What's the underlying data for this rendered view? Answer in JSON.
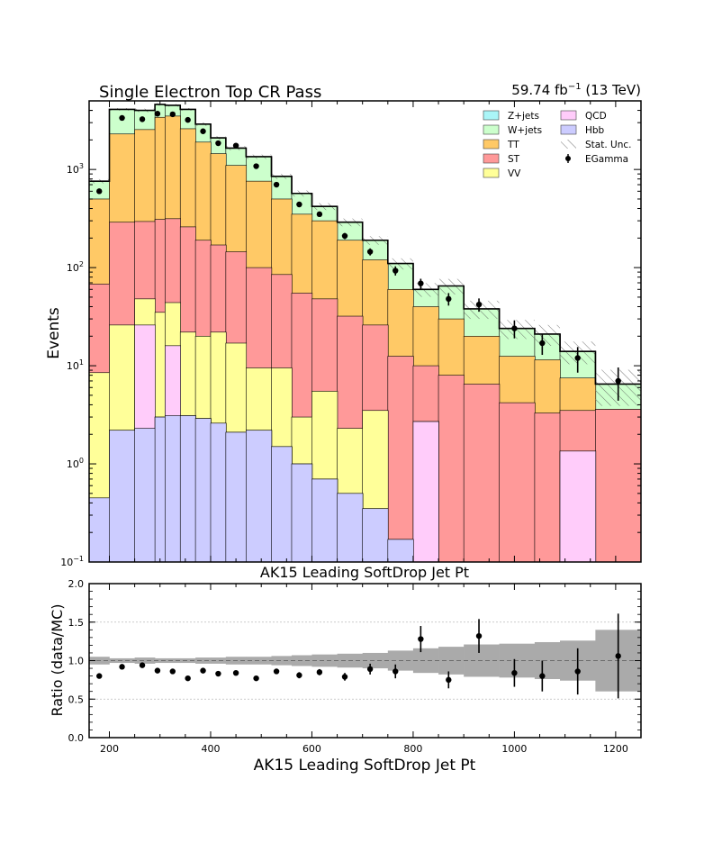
{
  "chart_data": {
    "type": "bar",
    "title": "Single Electron Top CR Pass",
    "lumi_label": "59.74 fb",
    "lumi_sup": "−1",
    "energy_label": " (13 TeV)",
    "main_xlabel": "AK15 Leading SoftDrop Jet Pt",
    "main_ylabel": "Events",
    "ratio_xlabel": "AK15 Leading SoftDrop Jet Pt",
    "ratio_ylabel": "Ratio (data/MC)",
    "x_range": [
      160,
      1250
    ],
    "main_y_scale": "log",
    "main_ylim": [
      0.1,
      5000
    ],
    "ratio_ylim": [
      0,
      2
    ],
    "x_ticks": [
      "200",
      "400",
      "600",
      "800",
      "1000",
      "1200"
    ],
    "ratio_ticks": [
      "0.0",
      "0.5",
      "1.0",
      "1.5",
      "2.0"
    ],
    "legend_placement": "top-right",
    "legend": [
      {
        "label": "Z+jets",
        "color": "#aaf5f7"
      },
      {
        "label": "QCD",
        "color": "#ffccfa"
      },
      {
        "label": "W+jets",
        "color": "#ccffcc"
      },
      {
        "label": "Hbb",
        "color": "#ccccff"
      },
      {
        "label": "TT",
        "color": "#ffc966"
      },
      {
        "label": "Stat. Unc.",
        "color": "#555555"
      },
      {
        "label": "ST",
        "color": "#ff9999"
      },
      {
        "label": "EGamma",
        "color": "#000000"
      },
      {
        "label": "VV",
        "color": "#ffff99"
      }
    ],
    "bin_edges": [
      160,
      200,
      250,
      290,
      310,
      340,
      370,
      400,
      430,
      470,
      520,
      560,
      600,
      650,
      700,
      750,
      800,
      850,
      900,
      970,
      1040,
      1090,
      1160,
      1250
    ],
    "stack_order": [
      "Hbb",
      "QCD",
      "VV",
      "ST",
      "TT",
      "W+jets",
      "Z+jets"
    ],
    "stack_colors": {
      "Hbb": "#ccccff",
      "QCD": "#ffccfa",
      "VV": "#ffff99",
      "ST": "#ff9999",
      "TT": "#ffc966",
      "W+jets": "#ccffcc",
      "Z+jets": "#aaf5f7"
    },
    "stack_cumulative": {
      "Hbb": [
        0.45,
        2.2,
        2.3,
        3.0,
        3.1,
        3.1,
        2.9,
        2.6,
        2.1,
        2.2,
        1.5,
        1.0,
        0.7,
        0.5,
        0.35,
        0.17,
        0.1,
        0.1,
        0.1,
        0.1,
        0.1,
        0.1,
        0.1
      ],
      "QCD": [
        0.45,
        2.2,
        26,
        3.0,
        16,
        3.1,
        2.9,
        2.6,
        2.1,
        2.2,
        1.5,
        1.0,
        0.7,
        0.5,
        0.35,
        0.17,
        2.7,
        0.1,
        0.1,
        0.1,
        0.1,
        1.35,
        0.1
      ],
      "VV": [
        8.5,
        26,
        48,
        35,
        44,
        22,
        20,
        22,
        17,
        9.5,
        9.5,
        3.0,
        5.5,
        2.3,
        3.5,
        0.17,
        2.7,
        0.1,
        0.1,
        0.1,
        0.1,
        1.35,
        0.1
      ],
      "ST": [
        68,
        290,
        295,
        310,
        315,
        260,
        190,
        170,
        145,
        100,
        85,
        55,
        48,
        32,
        26,
        12.5,
        10,
        8,
        6.5,
        4.2,
        3.3,
        3.5,
        3.6
      ],
      "TT": [
        500,
        2300,
        2550,
        3400,
        3500,
        2600,
        1900,
        1450,
        1100,
        760,
        500,
        350,
        300,
        190,
        120,
        60,
        40,
        30,
        20,
        12.5,
        11.5,
        7.5,
        3.6
      ],
      "W+jets": [
        760,
        4100,
        4000,
        4600,
        4500,
        4100,
        2900,
        2100,
        1650,
        1350,
        850,
        570,
        420,
        290,
        190,
        110,
        60,
        65,
        38,
        24,
        21,
        14,
        6.5
      ],
      "Z+jets": [
        760,
        4100,
        4000,
        4600,
        4500,
        4100,
        2900,
        2100,
        1650,
        1350,
        850,
        570,
        420,
        290,
        190,
        110,
        60,
        65,
        38,
        24,
        21,
        14,
        6.5
      ]
    },
    "stat_unc_rel": [
      0.05,
      0.03,
      0.04,
      0.03,
      0.03,
      0.03,
      0.04,
      0.04,
      0.05,
      0.05,
      0.06,
      0.07,
      0.08,
      0.09,
      0.1,
      0.13,
      0.16,
      0.18,
      0.21,
      0.22,
      0.24,
      0.26,
      0.4
    ],
    "data_points": [
      {
        "x": 180,
        "y": 600,
        "yerr": 25,
        "ratio": 0.8,
        "ratio_err": 0.03
      },
      {
        "x": 225,
        "y": 3350,
        "yerr": 58,
        "ratio": 0.92,
        "ratio_err": 0.02
      },
      {
        "x": 265,
        "y": 3250,
        "yerr": 57,
        "ratio": 0.94,
        "ratio_err": 0.02
      },
      {
        "x": 295,
        "y": 3700,
        "yerr": 61,
        "ratio": 0.87,
        "ratio_err": 0.02
      },
      {
        "x": 325,
        "y": 3650,
        "yerr": 60,
        "ratio": 0.86,
        "ratio_err": 0.02
      },
      {
        "x": 355,
        "y": 3200,
        "yerr": 57,
        "ratio": 0.77,
        "ratio_err": 0.02
      },
      {
        "x": 385,
        "y": 2450,
        "yerr": 50,
        "ratio": 0.87,
        "ratio_err": 0.02
      },
      {
        "x": 415,
        "y": 1850,
        "yerr": 43,
        "ratio": 0.83,
        "ratio_err": 0.02
      },
      {
        "x": 450,
        "y": 1750,
        "yerr": 42,
        "ratio": 0.84,
        "ratio_err": 0.02
      },
      {
        "x": 490,
        "y": 1080,
        "yerr": 33,
        "ratio": 0.77,
        "ratio_err": 0.03
      },
      {
        "x": 530,
        "y": 700,
        "yerr": 26,
        "ratio": 0.86,
        "ratio_err": 0.03
      },
      {
        "x": 575,
        "y": 440,
        "yerr": 21,
        "ratio": 0.81,
        "ratio_err": 0.04
      },
      {
        "x": 615,
        "y": 350,
        "yerr": 19,
        "ratio": 0.85,
        "ratio_err": 0.04
      },
      {
        "x": 665,
        "y": 210,
        "yerr": 15,
        "ratio": 0.79,
        "ratio_err": 0.05
      },
      {
        "x": 715,
        "y": 145,
        "yerr": 12,
        "ratio": 0.89,
        "ratio_err": 0.07
      },
      {
        "x": 765,
        "y": 93,
        "yerr": 10,
        "ratio": 0.86,
        "ratio_err": 0.09
      },
      {
        "x": 815,
        "y": 69,
        "yerr": 8,
        "ratio": 1.28,
        "ratio_err": 0.17
      },
      {
        "x": 870,
        "y": 48,
        "yerr": 7,
        "ratio": 0.75,
        "ratio_err": 0.11
      },
      {
        "x": 930,
        "y": 42,
        "yerr": 6.5,
        "ratio": 1.32,
        "ratio_err": 0.22
      },
      {
        "x": 1000,
        "y": 24,
        "yerr": 5,
        "ratio": 0.84,
        "ratio_err": 0.18
      },
      {
        "x": 1055,
        "y": 17,
        "yerr": 4.1,
        "ratio": 0.8,
        "ratio_err": 0.2
      },
      {
        "x": 1125,
        "y": 12,
        "yerr": 3.5,
        "ratio": 0.86,
        "ratio_err": 0.3
      },
      {
        "x": 1205,
        "y": 7,
        "yerr": 2.6,
        "ratio": 1.06,
        "ratio_err": 0.55
      }
    ]
  }
}
